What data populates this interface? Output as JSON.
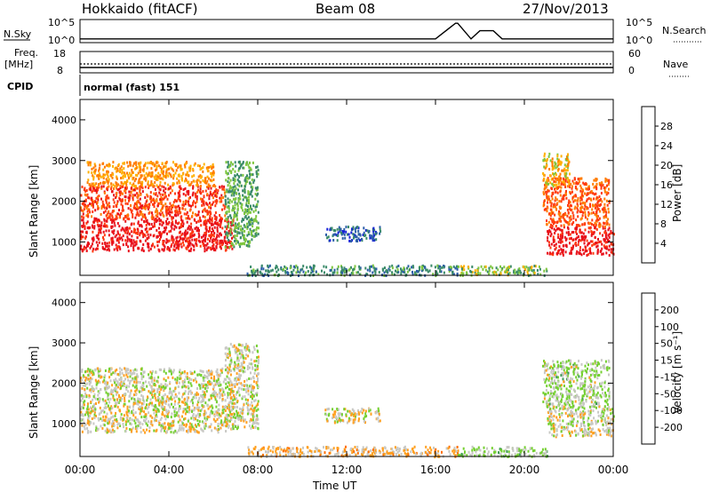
{
  "header": {
    "station": "Hokkaido (fitACF)",
    "beam": "Beam 08",
    "date": "27/Nov/2013"
  },
  "top_panels": {
    "nsky_label": "N.Sky",
    "nsearch_label": "N.Search",
    "count_ticks_left": [
      "10^5",
      "10^0"
    ],
    "count_ticks_right": [
      "10^5",
      "10^0"
    ],
    "freq_label_1": "Freq.",
    "freq_label_2": "[MHz]",
    "freq_ticks": [
      "18",
      "8"
    ],
    "nave_label": "Nave",
    "nave_ticks": [
      "60",
      "0"
    ],
    "cpid_label": "CPID",
    "cpid_value": "normal (fast) 151"
  },
  "power_colorbar": {
    "label": "Power [dB]",
    "ticks": [
      "28",
      "24",
      "20",
      "16",
      "12",
      "8",
      "4"
    ],
    "colors": [
      "#e8101a",
      "#ff3a10",
      "#ff7b00",
      "#ffb000",
      "#7ec63f",
      "#3a8a6a",
      "#2c5ea8",
      "#1620d8"
    ]
  },
  "velocity_colorbar": {
    "label": "Velocity [m s⁻¹]",
    "ticks": [
      "200",
      "100",
      "50",
      "15",
      "-15",
      "-50",
      "-100",
      "-200"
    ],
    "colors": [
      "#1e2fd0",
      "#2e6ba0",
      "#3f9a55",
      "#74d030",
      "#c8c8c4",
      "#ffa020",
      "#ff7000",
      "#ff3a00",
      "#e8101a"
    ]
  },
  "chart_data": {
    "type": "heatmap",
    "x_label": "Time UT",
    "x_ticks": [
      "00:00",
      "04:00",
      "08:00",
      "12:00",
      "16:00",
      "20:00",
      "00:00"
    ],
    "x_range_hours": [
      0,
      24
    ],
    "y_label": "Slant Range [km]",
    "y_ticks": [
      1000,
      2000,
      3000,
      4000
    ],
    "y_range_km": [
      180,
      4500
    ],
    "panels": [
      {
        "name": "Power",
        "units": "dB",
        "range": [
          0,
          32
        ],
        "echo_regions": [
          {
            "t": [
              0.0,
              6.9
            ],
            "r": [
              800,
              1600
            ],
            "value": 30
          },
          {
            "t": [
              0.0,
              6.5
            ],
            "r": [
              1600,
              2400
            ],
            "value": 26
          },
          {
            "t": [
              0.3,
              6.0
            ],
            "r": [
              2400,
              3000
            ],
            "value": 20
          },
          {
            "t": [
              6.5,
              8.0
            ],
            "r": [
              900,
              3000
            ],
            "value": 12
          },
          {
            "t": [
              7.5,
              17.0
            ],
            "r": [
              200,
              450
            ],
            "value": 10
          },
          {
            "t": [
              11.0,
              13.5
            ],
            "r": [
              1050,
              1400
            ],
            "value": 6
          },
          {
            "t": [
              17.0,
              21.0
            ],
            "r": [
              200,
              450
            ],
            "value": 14
          },
          {
            "t": [
              21.0,
              24.0
            ],
            "r": [
              700,
              1400
            ],
            "value": 30
          },
          {
            "t": [
              20.8,
              23.8
            ],
            "r": [
              1400,
              2600
            ],
            "value": 24
          },
          {
            "t": [
              20.8,
              22.0
            ],
            "r": [
              2400,
              3200
            ],
            "value": 18
          }
        ]
      },
      {
        "name": "Velocity",
        "units": "m s-1",
        "range": [
          -200,
          200
        ],
        "echo_regions": [
          {
            "t": [
              0.0,
              6.9
            ],
            "r": [
              800,
              1600
            ],
            "value": 0
          },
          {
            "t": [
              0.0,
              6.5
            ],
            "r": [
              1600,
              2400
            ],
            "value": 0
          },
          {
            "t": [
              6.5,
              8.0
            ],
            "r": [
              900,
              3000
            ],
            "value": 0
          },
          {
            "t": [
              7.5,
              17.0
            ],
            "r": [
              200,
              450
            ],
            "value": -30
          },
          {
            "t": [
              17.0,
              21.0
            ],
            "r": [
              200,
              450
            ],
            "value": 30
          },
          {
            "t": [
              11.0,
              13.5
            ],
            "r": [
              1050,
              1400
            ],
            "value": 0
          },
          {
            "t": [
              21.0,
              24.0
            ],
            "r": [
              700,
              1400
            ],
            "value": 0
          },
          {
            "t": [
              20.8,
              23.8
            ],
            "r": [
              1400,
              2600
            ],
            "value": 20
          }
        ]
      }
    ],
    "nsky_series_hours": [
      0,
      2,
      4,
      6,
      8,
      10,
      12,
      14,
      16,
      16.9,
      17.0,
      17.6,
      18.0,
      18.6,
      19,
      22,
      24
    ],
    "nsky_series_log": [
      0.5,
      0.5,
      0.5,
      0.5,
      0.5,
      0.5,
      0.5,
      0.5,
      0.5,
      4.5,
      4.5,
      0.5,
      2.6,
      2.6,
      0.5,
      0.5,
      0.5
    ],
    "freq_mhz": 10,
    "nave_value": 24
  }
}
